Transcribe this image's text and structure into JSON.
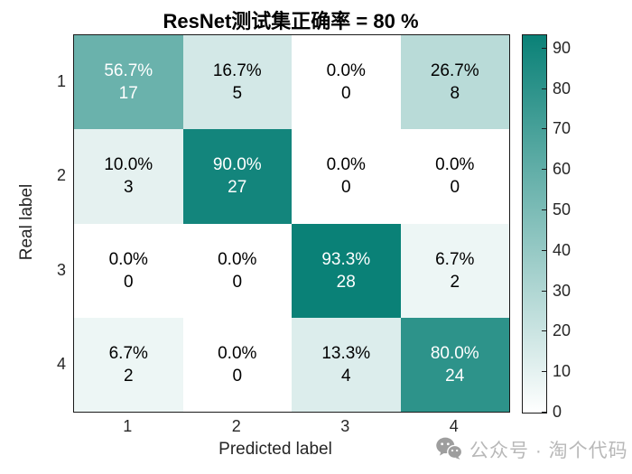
{
  "title": "ResNet测试集正确率 = 80 %",
  "chart_data": {
    "type": "heatmap",
    "subtype": "confusion-matrix",
    "title": "ResNet测试集正确率 = 80 %",
    "xlabel": "Predicted label",
    "ylabel": "Real label",
    "x_ticks": [
      "1",
      "2",
      "3",
      "4"
    ],
    "y_ticks": [
      "1",
      "2",
      "3",
      "4"
    ],
    "matrix_percent": [
      [
        56.7,
        16.7,
        0.0,
        26.7
      ],
      [
        10.0,
        90.0,
        0.0,
        0.0
      ],
      [
        0.0,
        0.0,
        93.3,
        6.7
      ],
      [
        6.7,
        0.0,
        13.3,
        80.0
      ]
    ],
    "matrix_count": [
      [
        17,
        5,
        0,
        8
      ],
      [
        3,
        27,
        0,
        0
      ],
      [
        0,
        0,
        28,
        2
      ],
      [
        2,
        0,
        4,
        24
      ]
    ],
    "colorbar": {
      "min": 0,
      "max": 93.33,
      "ticks": [
        0,
        10,
        20,
        30,
        40,
        50,
        60,
        70,
        80,
        90
      ],
      "color_low": "#ffffff",
      "color_high": "#0a8177"
    },
    "grid": false,
    "legend_position": "right-colorbar"
  },
  "colors": {
    "accent": "#0a8177",
    "axis_text": "#262626",
    "border": "#1a1a1a",
    "cell_text_light": "#ffffff",
    "cell_text_dark": "#000000",
    "watermark_text": "#b8b8b8",
    "watermark_icon": "#9e9e9e"
  },
  "watermark": {
    "label": "公众号 · 淘个代码",
    "icon": "wechat-icon"
  }
}
